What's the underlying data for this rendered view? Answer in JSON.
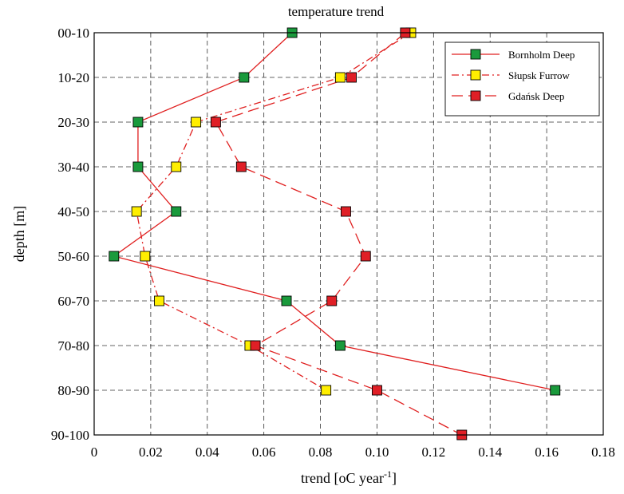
{
  "chart_data": {
    "type": "line",
    "title": "temperature trend",
    "xlabel_prefix": "trend [",
    "xlabel_unit": "oC year",
    "xlabel_sup": "-1",
    "xlabel_suffix": "]",
    "ylabel": "depth [m]",
    "categories": [
      "00-10",
      "10-20",
      "20-30",
      "30-40",
      "40-50",
      "50-60",
      "60-70",
      "70-80",
      "80-90",
      "90-100"
    ],
    "xlim": [
      0,
      0.18
    ],
    "x_ticks": [
      0,
      0.02,
      0.04,
      0.06,
      0.08,
      0.1,
      0.12,
      0.14,
      0.16,
      0.18
    ],
    "x_tick_labels": [
      "0",
      "0.02",
      "0.04",
      "0.06",
      "0.08",
      "0.10",
      "0.12",
      "0.14",
      "0.16",
      "0.18"
    ],
    "grid": true,
    "legend_position": "top-right",
    "series": [
      {
        "name": "Bornholm Deep",
        "color": "#e02020",
        "marker_color": "#1a9a3c",
        "line_style": "solid",
        "values": [
          0.07,
          0.053,
          0.0155,
          0.0155,
          0.029,
          0.007,
          0.068,
          0.087,
          0.163,
          null
        ]
      },
      {
        "name": "Słupsk Furrow",
        "color": "#e02020",
        "marker_color": "#ffee00",
        "line_style": "dashdot",
        "values": [
          0.112,
          0.087,
          0.036,
          0.029,
          0.015,
          0.018,
          0.023,
          0.055,
          0.082,
          null
        ]
      },
      {
        "name": "Gdańsk Deep",
        "color": "#e02020",
        "marker_color": "#e01f26",
        "line_style": "dashed",
        "values": [
          0.11,
          0.091,
          0.043,
          0.052,
          0.089,
          0.096,
          0.084,
          0.057,
          0.1,
          0.13
        ]
      }
    ]
  }
}
